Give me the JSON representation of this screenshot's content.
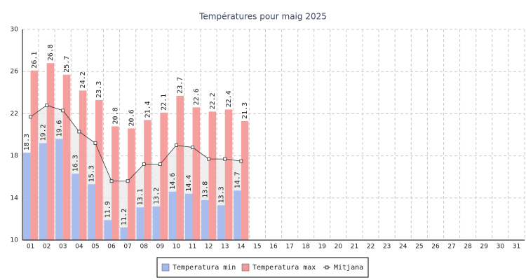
{
  "chart_data": {
    "type": "bar",
    "title": "Températures pour maig 2025",
    "categories": [
      "01",
      "02",
      "03",
      "04",
      "05",
      "06",
      "07",
      "08",
      "09",
      "10",
      "11",
      "12",
      "13",
      "14",
      "15",
      "16",
      "17",
      "18",
      "19",
      "20",
      "21",
      "22",
      "23",
      "24",
      "25",
      "26",
      "27",
      "28",
      "29",
      "30",
      "31"
    ],
    "series": [
      {
        "name": "Temperatura min",
        "color": "#a3b8ec",
        "values": [
          18.3,
          19.2,
          19.6,
          16.3,
          15.3,
          11.9,
          11.2,
          13.1,
          13.2,
          14.6,
          14.4,
          13.8,
          13.3,
          14.7,
          null,
          null,
          null,
          null,
          null,
          null,
          null,
          null,
          null,
          null,
          null,
          null,
          null,
          null,
          null,
          null,
          null
        ]
      },
      {
        "name": "Temperatura max",
        "color": "#f59a9a",
        "values": [
          26.1,
          26.8,
          25.7,
          24.2,
          23.3,
          20.8,
          20.6,
          21.4,
          22.1,
          23.7,
          22.6,
          22.2,
          22.4,
          21.3,
          null,
          null,
          null,
          null,
          null,
          null,
          null,
          null,
          null,
          null,
          null,
          null,
          null,
          null,
          null,
          null,
          null
        ]
      },
      {
        "name": "Mitjana",
        "color": "#333333",
        "type": "line",
        "values": [
          21.7,
          22.8,
          22.3,
          20.3,
          19.2,
          15.6,
          15.6,
          17.2,
          17.2,
          19.0,
          18.8,
          17.7,
          17.7,
          17.5,
          null,
          null,
          null,
          null,
          null,
          null,
          null,
          null,
          null,
          null,
          null,
          null,
          null,
          null,
          null,
          null,
          null
        ]
      }
    ],
    "ylim": [
      10,
      30
    ],
    "yticks": [
      10,
      14,
      18,
      22,
      26,
      30
    ],
    "grid": true,
    "legend": "bottom"
  }
}
